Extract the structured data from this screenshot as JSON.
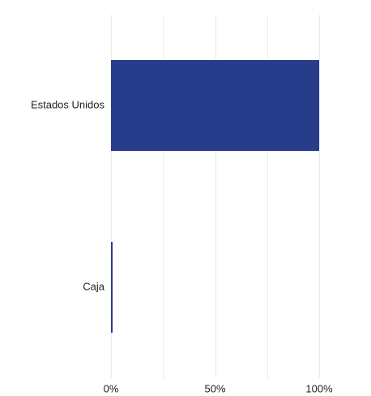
{
  "chart_data": {
    "type": "bar",
    "orientation": "horizontal",
    "categories": [
      "Estados Unidos",
      "Caja"
    ],
    "values": [
      100,
      0.4
    ],
    "xlim": [
      0,
      100
    ],
    "x_ticks": [
      0,
      50,
      100
    ],
    "x_tick_labels": [
      "0%",
      "50%",
      "100%"
    ],
    "title": "",
    "xlabel": "",
    "ylabel": "",
    "grid": true,
    "legend": "none",
    "bar_color": "#283c8c"
  }
}
